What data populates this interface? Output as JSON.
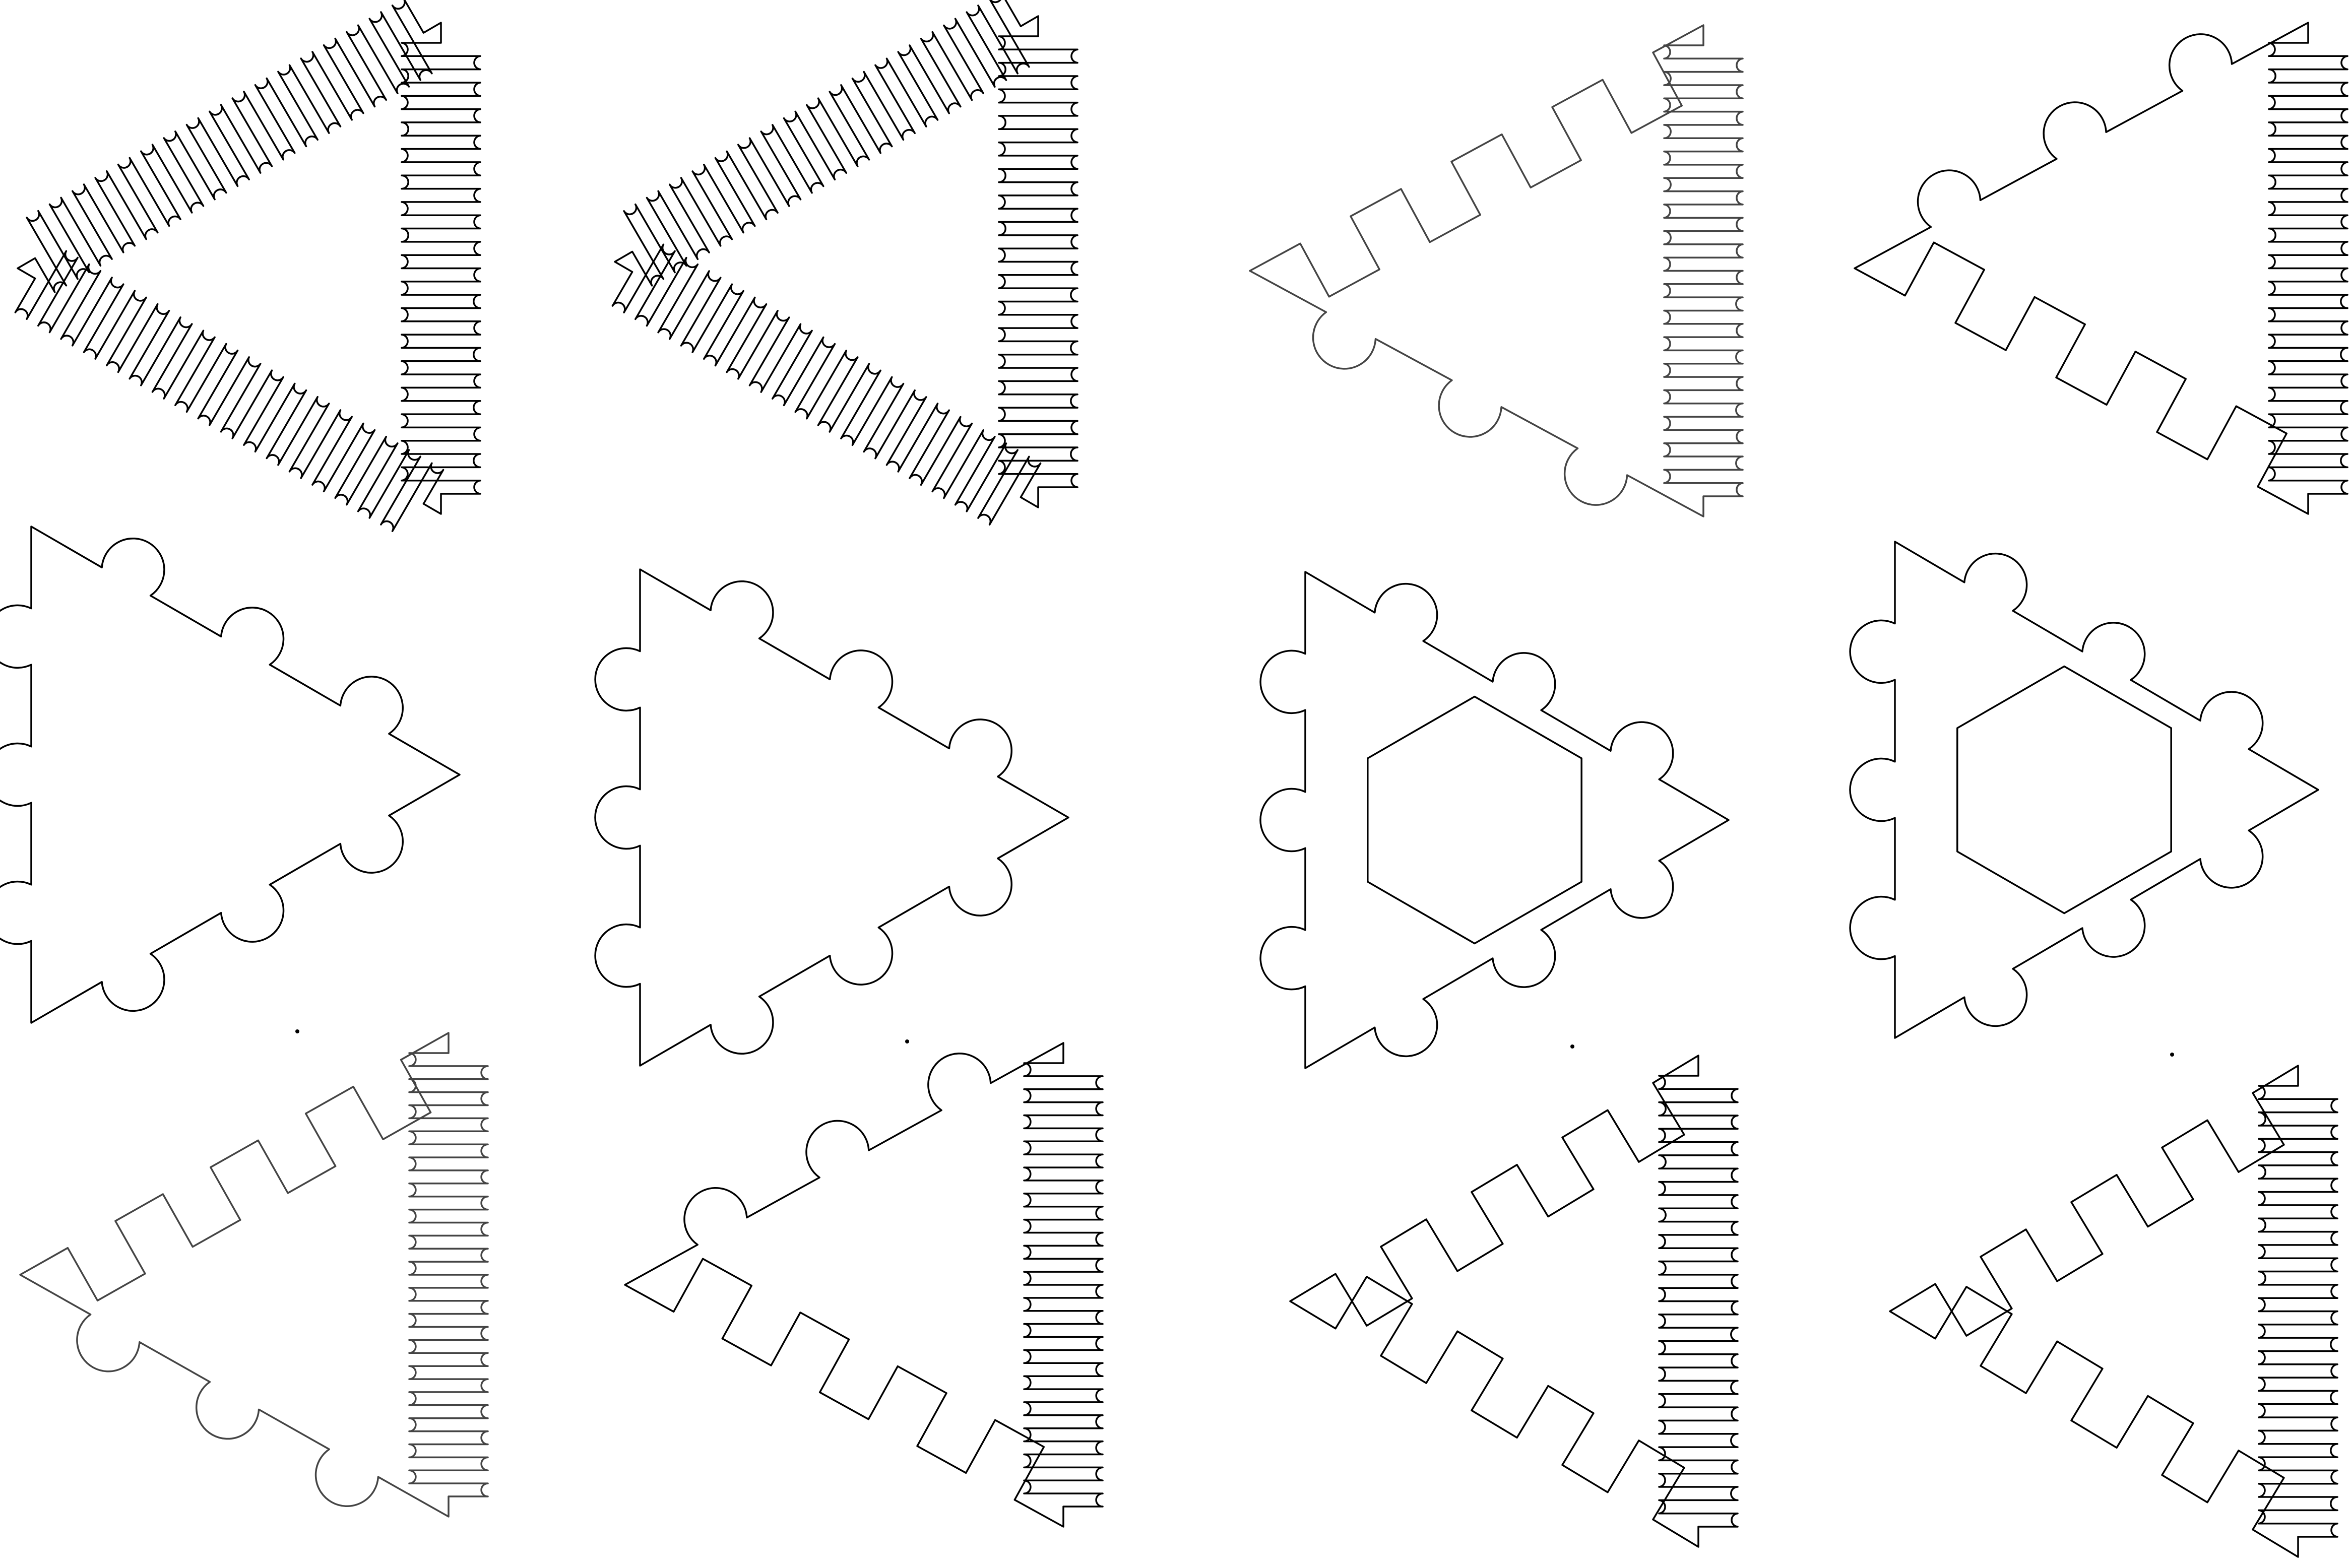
{
  "sheet": {
    "background": "#ffffff",
    "line_color": "#000000",
    "line_color_light": "#444444"
  },
  "shapes": [
    {
      "name": "triangle-left-wave-wave-wave",
      "pointing": "left",
      "edges": [
        "wave",
        "wave",
        "wave"
      ],
      "hexagon": false
    },
    {
      "name": "triangle-left-wave-wave-wave-2",
      "pointing": "left",
      "edges": [
        "wave",
        "wave",
        "wave"
      ],
      "hexagon": false
    },
    {
      "name": "triangle-left-wave-bumps-zigzag",
      "pointing": "left",
      "edges": [
        "wave",
        "bumps",
        "zigzag"
      ],
      "hexagon": false
    },
    {
      "name": "triangle-left-wave-zigzag-bumps",
      "pointing": "left",
      "edges": [
        "wave",
        "zigzag",
        "bumps"
      ],
      "hexagon": false
    },
    {
      "name": "triangle-right-bumps",
      "pointing": "right",
      "edges": [
        "bumps",
        "bumps",
        "bumps"
      ],
      "hexagon": false
    },
    {
      "name": "triangle-right-bumps-2",
      "pointing": "right",
      "edges": [
        "bumps",
        "bumps",
        "bumps"
      ],
      "hexagon": false
    },
    {
      "name": "triangle-right-bumps-hexagon",
      "pointing": "right",
      "edges": [
        "bumps",
        "bumps",
        "bumps"
      ],
      "hexagon": true
    },
    {
      "name": "triangle-right-bumps-hexagon-2",
      "pointing": "right",
      "edges": [
        "bumps",
        "bumps",
        "bumps"
      ],
      "hexagon": true
    },
    {
      "name": "triangle-left-wave-bumps-zigzag-2",
      "pointing": "left",
      "edges": [
        "wave",
        "bumps",
        "zigzag"
      ],
      "hexagon": false
    },
    {
      "name": "triangle-left-wave-zigzag-bumps-2",
      "pointing": "left",
      "edges": [
        "wave",
        "zigzag",
        "bumps"
      ],
      "hexagon": false
    },
    {
      "name": "triangle-left-wave-zigzag-zigzag",
      "pointing": "left",
      "edges": [
        "wave",
        "zigzag",
        "zigzag"
      ],
      "hexagon": false
    },
    {
      "name": "triangle-left-wave-zigzag-zigzag-2",
      "pointing": "left",
      "edges": [
        "wave",
        "zigzag",
        "zigzag"
      ],
      "hexagon": false
    }
  ]
}
